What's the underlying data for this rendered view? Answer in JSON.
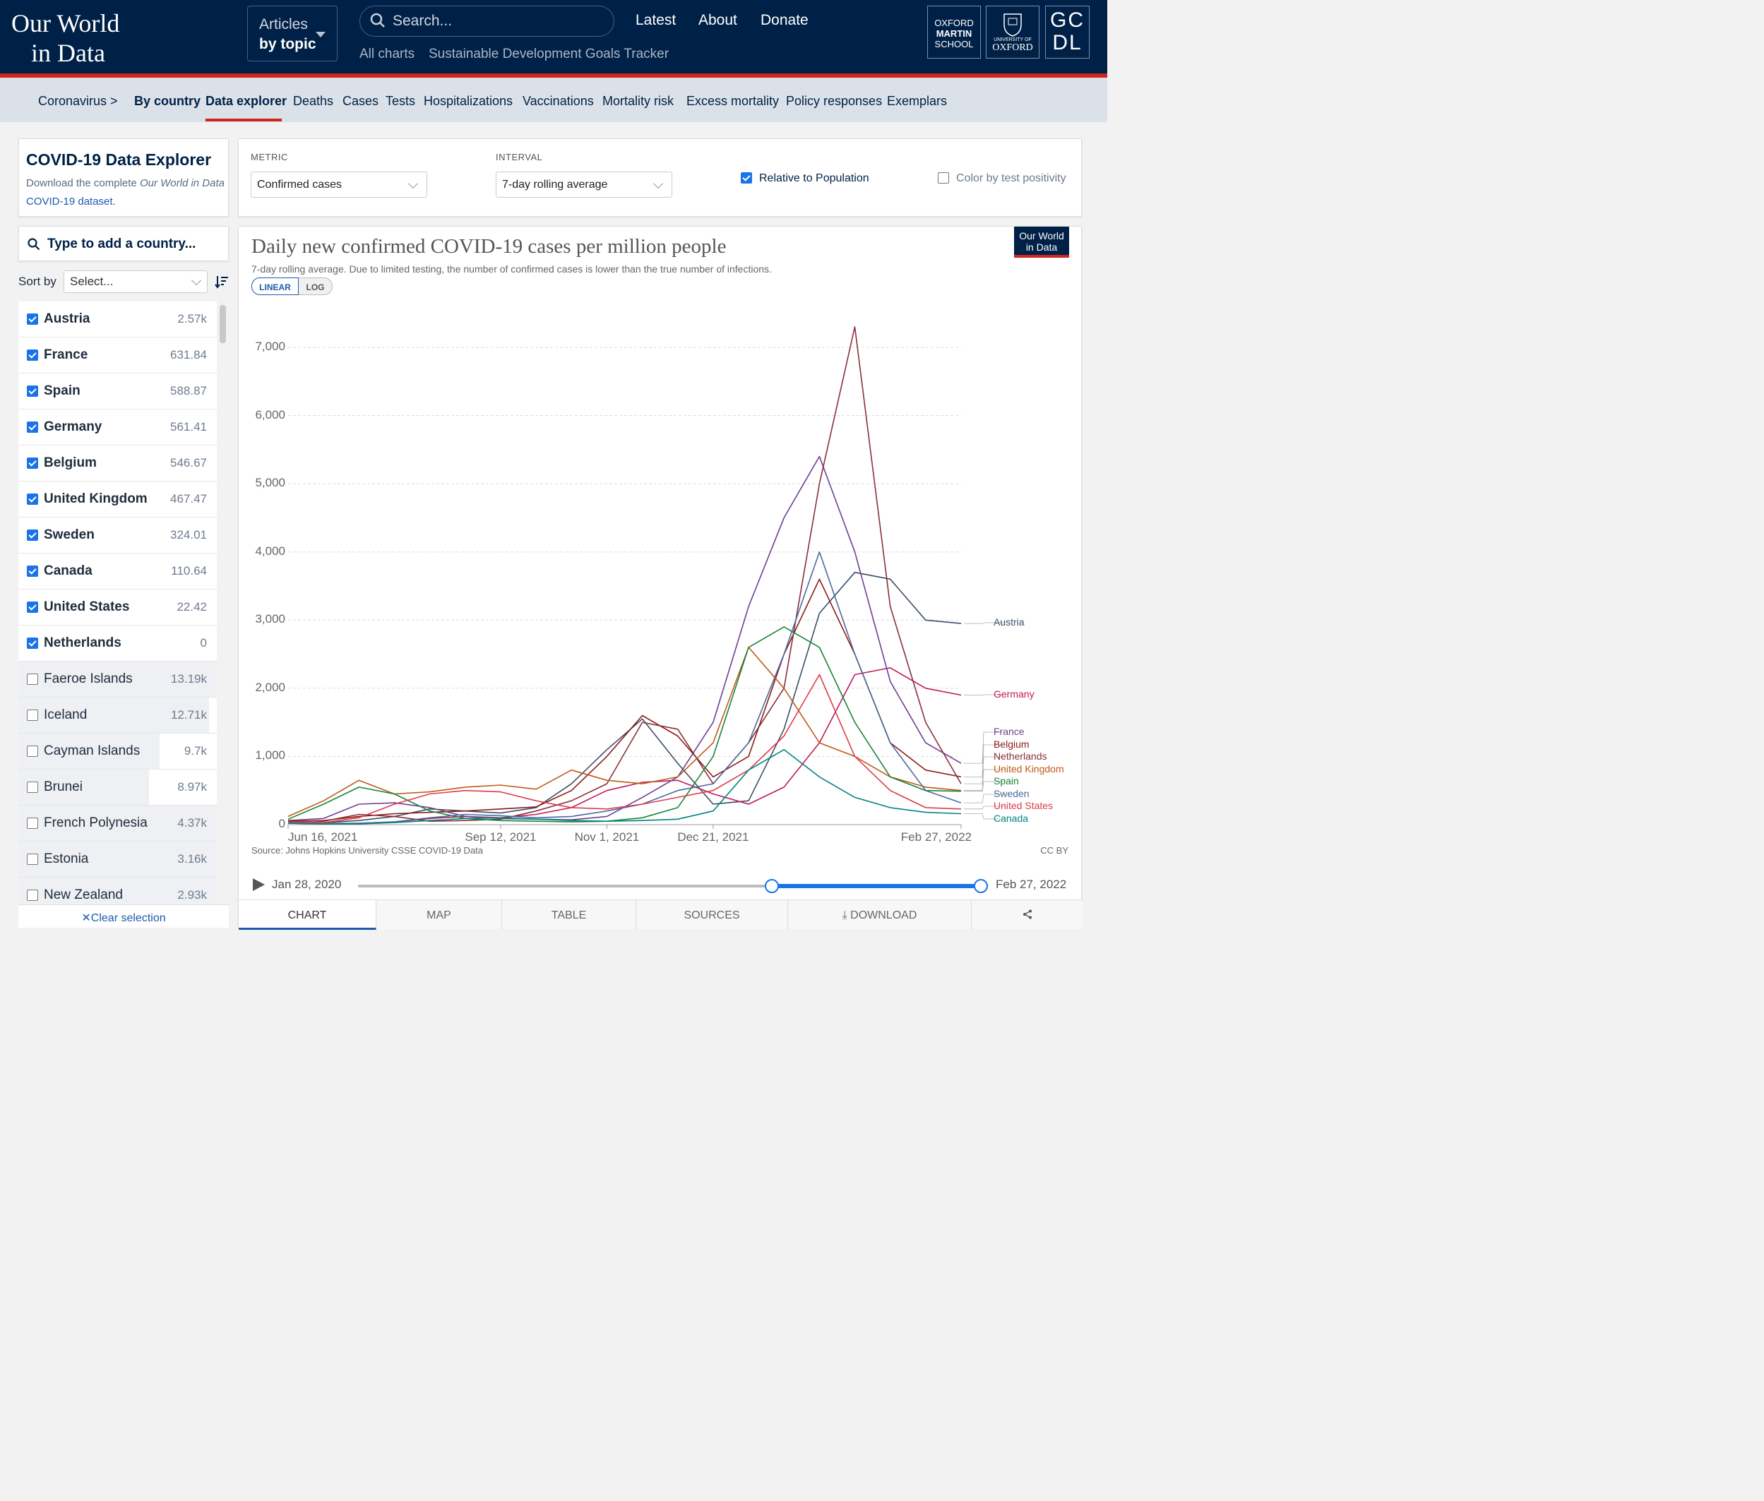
{
  "header": {
    "logo_line1": "Our World",
    "logo_line2": "in Data",
    "articles_line1": "Articles",
    "articles_line2": "by topic",
    "search_placeholder": "Search...",
    "nav": [
      "Latest",
      "About",
      "Donate"
    ],
    "subnav": [
      "All charts",
      "Sustainable Development Goals Tracker"
    ],
    "inst1": [
      "OXFORD",
      "MARTIN",
      "SCHOOL"
    ],
    "inst2_small": "UNIVERSITY OF",
    "inst2": "OXFORD",
    "inst3": [
      "GC",
      "DL"
    ]
  },
  "secnav": {
    "items": [
      "Coronavirus >",
      "By country",
      "Data explorer",
      "Deaths",
      "Cases",
      "Tests",
      "Hospitalizations",
      "Vaccinations",
      "Mortality risk",
      "Excess mortality",
      "Policy responses",
      "Exemplars"
    ],
    "active": "Data explorer"
  },
  "explorer": {
    "title": "COVID-19 Data Explorer",
    "desc_pre": "Download the complete ",
    "desc_em": "Our World in Data",
    "desc_link": "COVID-19 dataset.",
    "search_placeholder": "Type to add a country...",
    "sort_label": "Sort by",
    "sort_value": "Select...",
    "clear_label": "Clear selection"
  },
  "countries": [
    {
      "name": "Austria",
      "value": "2.57k",
      "selected": true
    },
    {
      "name": "France",
      "value": "631.84",
      "selected": true
    },
    {
      "name": "Spain",
      "value": "588.87",
      "selected": true
    },
    {
      "name": "Germany",
      "value": "561.41",
      "selected": true
    },
    {
      "name": "Belgium",
      "value": "546.67",
      "selected": true
    },
    {
      "name": "United Kingdom",
      "value": "467.47",
      "selected": true
    },
    {
      "name": "Sweden",
      "value": "324.01",
      "selected": true
    },
    {
      "name": "Canada",
      "value": "110.64",
      "selected": true
    },
    {
      "name": "United States",
      "value": "22.42",
      "selected": true
    },
    {
      "name": "Netherlands",
      "value": "0",
      "selected": true
    },
    {
      "name": "Faeroe Islands",
      "value": "13.19k",
      "selected": false
    },
    {
      "name": "Iceland",
      "value": "12.71k",
      "selected": false
    },
    {
      "name": "Cayman Islands",
      "value": "9.7k",
      "selected": false
    },
    {
      "name": "Brunei",
      "value": "8.97k",
      "selected": false
    },
    {
      "name": "French Polynesia",
      "value": "4.37k",
      "selected": false
    },
    {
      "name": "Estonia",
      "value": "3.16k",
      "selected": false
    },
    {
      "name": "New Zealand",
      "value": "2.93k",
      "selected": false
    }
  ],
  "controls": {
    "metric_label": "METRIC",
    "metric_value": "Confirmed cases",
    "interval_label": "INTERVAL",
    "interval_value": "7-day rolling average",
    "relative_label": "Relative to Population",
    "relative_checked": true,
    "positivity_label": "Color by test positivity",
    "positivity_checked": false
  },
  "chart": {
    "title": "Daily new confirmed COVID-19 cases per million people",
    "subtitle": "7-day rolling average. Due to limited testing, the number of confirmed cases is lower than the true number of infections.",
    "badge_line1": "Our World",
    "badge_line2": "in Data",
    "scale_linear": "LINEAR",
    "scale_log": "LOG",
    "source": "Source: Johns Hopkins University CSSE COVID-19 Data",
    "license": "CC BY",
    "timeline_start": "Jan 28, 2020",
    "timeline_end": "Feb 27, 2022",
    "tabs": [
      "CHART",
      "MAP",
      "TABLE",
      "SOURCES",
      "DOWNLOAD"
    ]
  },
  "colors": {
    "Austria": "#3c4e66",
    "Germany": "#c2185b",
    "France": "#6d3e91",
    "Belgium": "#8b1a1a",
    "Netherlands": "#883039",
    "United Kingdom": "#c05917",
    "Spain": "#18853a",
    "Sweden": "#4c6a9c",
    "United States": "#dc3c4a",
    "Canada": "#00847e"
  },
  "chart_data": {
    "type": "line",
    "x": [
      "Jun 16, 2021",
      "Jul 1, 2021",
      "Jul 16, 2021",
      "Aug 1, 2021",
      "Aug 16, 2021",
      "Sep 1, 2021",
      "Sep 12, 2021",
      "Oct 1, 2021",
      "Oct 16, 2021",
      "Nov 1, 2021",
      "Nov 16, 2021",
      "Dec 1, 2021",
      "Dec 21, 2021",
      "Jan 1, 2022",
      "Jan 10, 2022",
      "Jan 20, 2022",
      "Feb 1, 2022",
      "Feb 10, 2022",
      "Feb 20, 2022",
      "Feb 27, 2022"
    ],
    "x_ticks": [
      "Jun 16, 2021",
      "Sep 12, 2021",
      "Nov 1, 2021",
      "Dec 21, 2021",
      "Feb 27, 2022"
    ],
    "y_ticks": [
      0,
      1000,
      2000,
      3000,
      4000,
      5000,
      6000,
      7000
    ],
    "ylim": [
      0,
      7300
    ],
    "series": [
      {
        "name": "Austria",
        "values": [
          40,
          30,
          60,
          120,
          230,
          200,
          170,
          250,
          600,
          1100,
          1550,
          900,
          300,
          350,
          1400,
          3100,
          3700,
          3600,
          3000,
          2950
        ]
      },
      {
        "name": "Germany",
        "values": [
          20,
          10,
          20,
          40,
          90,
          120,
          100,
          150,
          250,
          500,
          620,
          650,
          450,
          300,
          550,
          1200,
          2200,
          2300,
          2000,
          1900
        ]
      },
      {
        "name": "France",
        "values": [
          60,
          90,
          300,
          320,
          250,
          120,
          90,
          80,
          70,
          120,
          400,
          700,
          1500,
          3200,
          4500,
          5400,
          4000,
          2100,
          1200,
          900
        ]
      },
      {
        "name": "Belgium",
        "values": [
          50,
          60,
          120,
          160,
          180,
          200,
          230,
          260,
          500,
          1000,
          1600,
          1300,
          700,
          1000,
          2500,
          3600,
          2500,
          1200,
          800,
          700
        ]
      },
      {
        "name": "Netherlands",
        "values": [
          60,
          50,
          150,
          120,
          50,
          60,
          80,
          200,
          350,
          600,
          1500,
          1400,
          600,
          1200,
          2000,
          5000,
          7300,
          3200,
          1500,
          600
        ]
      },
      {
        "name": "United Kingdom",
        "values": [
          120,
          350,
          650,
          450,
          480,
          550,
          580,
          520,
          800,
          650,
          600,
          700,
          1200,
          2600,
          2000,
          1200,
          1000,
          700,
          550,
          500
        ]
      },
      {
        "name": "Spain",
        "values": [
          80,
          300,
          550,
          450,
          200,
          90,
          60,
          50,
          40,
          50,
          100,
          250,
          1000,
          2600,
          2900,
          2600,
          1500,
          700,
          500,
          490
        ]
      },
      {
        "name": "Sweden",
        "values": [
          30,
          20,
          20,
          40,
          100,
          150,
          130,
          100,
          120,
          200,
          300,
          500,
          600,
          1200,
          2500,
          4000,
          2500,
          1200,
          500,
          320
        ]
      },
      {
        "name": "United States",
        "values": [
          40,
          30,
          100,
          300,
          450,
          500,
          480,
          350,
          250,
          230,
          300,
          400,
          500,
          800,
          1300,
          2200,
          1000,
          500,
          250,
          230
        ]
      },
      {
        "name": "Canada",
        "values": [
          20,
          10,
          10,
          30,
          60,
          90,
          100,
          80,
          60,
          50,
          60,
          80,
          200,
          800,
          1100,
          700,
          400,
          250,
          180,
          160
        ]
      }
    ],
    "legend_order": [
      "Austria",
      "Germany",
      "France",
      "Belgium",
      "Netherlands",
      "United Kingdom",
      "Spain",
      "Sweden",
      "United States",
      "Canada"
    ]
  }
}
